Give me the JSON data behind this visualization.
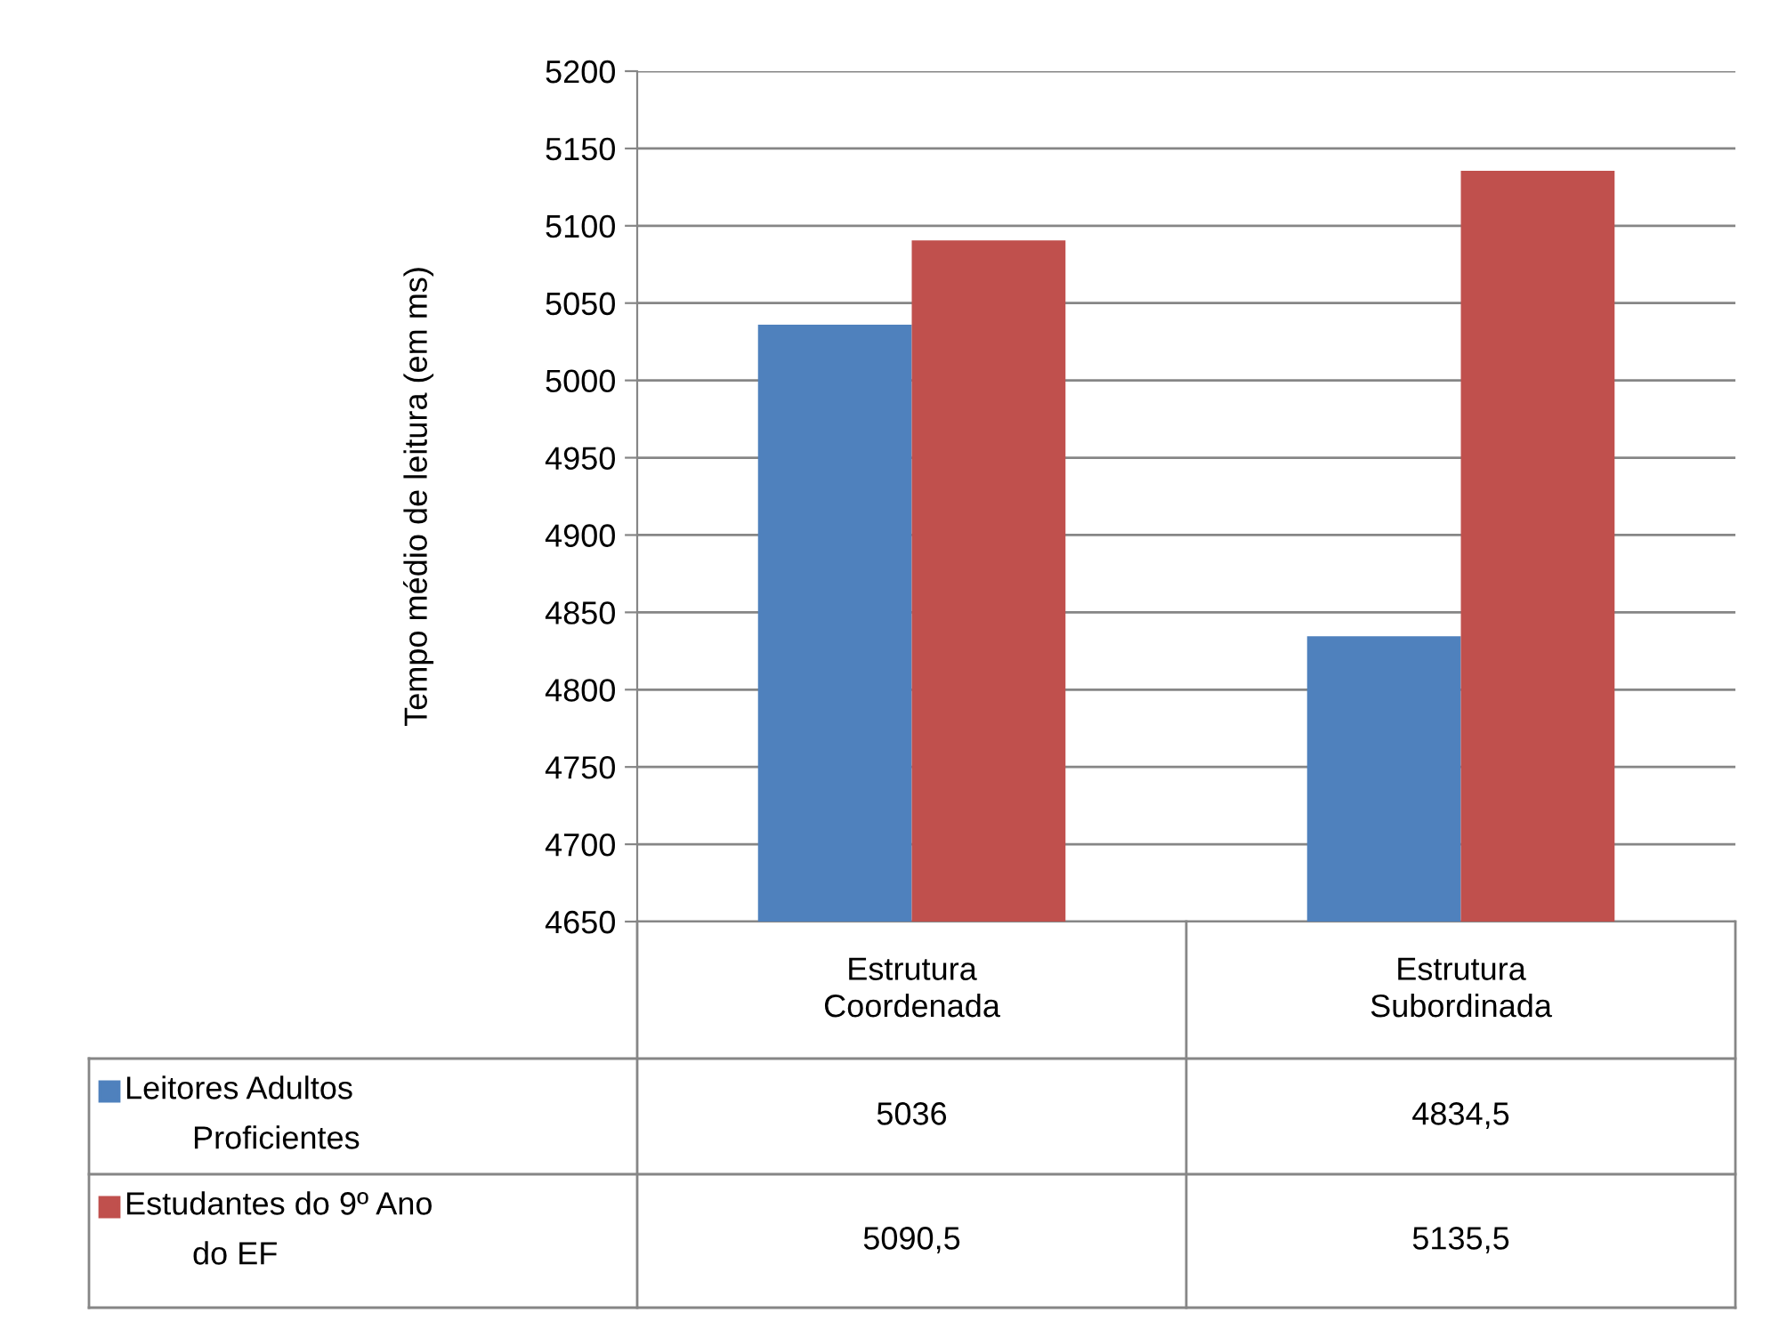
{
  "chart_data": {
    "type": "bar",
    "ylabel": "Tempo médio de leitura (em ms)",
    "categories": [
      "Estrutura Coordenada",
      "Estrutura Subordinada"
    ],
    "series": [
      {
        "name": "Leitores Adultos Proficientes",
        "color": "#4f81bd",
        "values": [
          5036,
          4834.5
        ],
        "value_labels": [
          "5036",
          "4834,5"
        ]
      },
      {
        "name": "Estudantes do 9º Ano do EF",
        "color": "#c0504d",
        "values": [
          5090.5,
          5135.5
        ],
        "value_labels": [
          "5090,5",
          "5135,5"
        ]
      }
    ],
    "ylim": [
      4650,
      5200
    ],
    "yticks": [
      4650,
      4700,
      4750,
      4800,
      4850,
      4900,
      4950,
      5000,
      5050,
      5100,
      5150,
      5200
    ],
    "grid": "y",
    "legend": "bottom"
  }
}
